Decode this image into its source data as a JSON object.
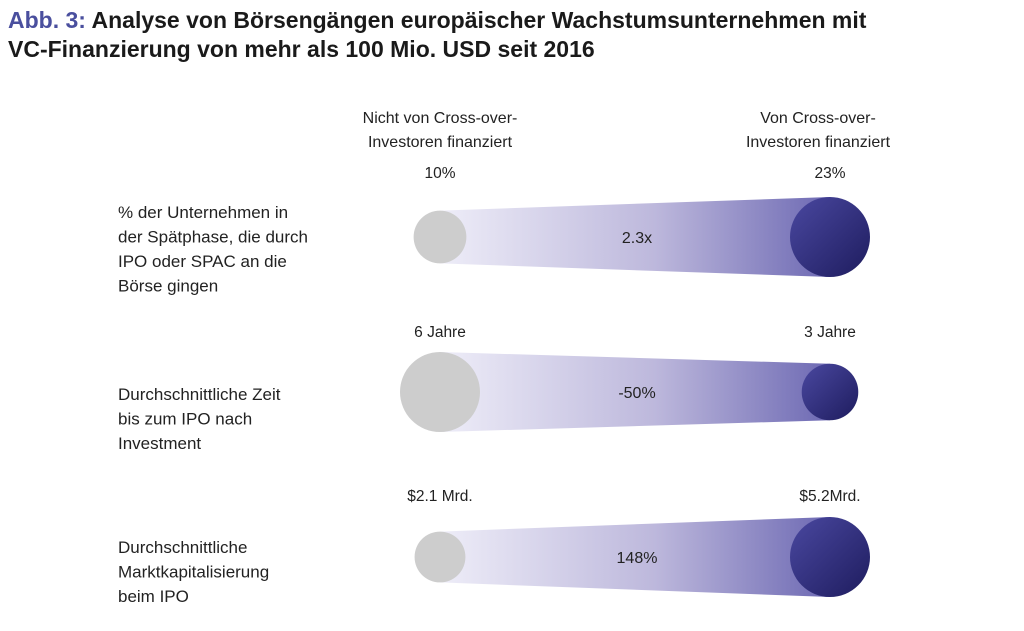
{
  "title": {
    "prefix": "Abb. 3:",
    "line1": "Analyse von Börsengängen europäischer Wachstumsunternehmen mit",
    "line2": "VC-Finanzierung von mehr als 100 Mio. USD seit 2016"
  },
  "chart_data": {
    "type": "bubble-comparison",
    "column_headers": {
      "left": [
        "Nicht von Cross-over-",
        "Investoren finanziert"
      ],
      "right": [
        "Von Cross-over-",
        "Investoren finanziert"
      ]
    },
    "rows": [
      {
        "label": [
          "% der Unternehmen in",
          "der Spätphase, die durch",
          "IPO oder SPAC an die",
          "Börse gingen"
        ],
        "left_value": 10,
        "left_label": "10%",
        "right_value": 23,
        "right_label": "23%",
        "change_label": "2.3x"
      },
      {
        "label": [
          "Durchschnittliche Zeit",
          "bis zum IPO nach",
          "Investment"
        ],
        "left_value": 6,
        "left_label": "6 Jahre",
        "right_value": 3,
        "right_label": "3 Jahre",
        "change_label": "-50%"
      },
      {
        "label": [
          "Durchschnittliche",
          "Marktkapitalisierung",
          "beim IPO"
        ],
        "left_value": 2.1,
        "left_label": "$2.1 Mrd.",
        "right_value": 5.2,
        "right_label": "$5.2Mrd.",
        "change_label": "148%"
      }
    ],
    "colors": {
      "left_bubble": "#cdcdcd",
      "right_bubble": "#2c2a7a",
      "band": "#bdb8dc"
    }
  }
}
